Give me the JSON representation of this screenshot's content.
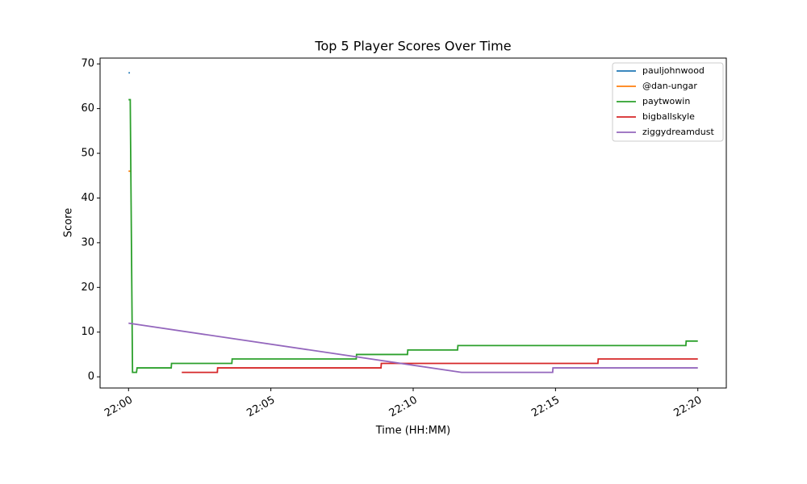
{
  "chart_data": {
    "type": "line",
    "title": "Top 5 Player Scores Over Time",
    "xlabel": "Time (HH:MM)",
    "ylabel": "Score",
    "xlim": [
      1319,
      1341
    ],
    "ylim": [
      -2.5,
      71.3
    ],
    "xticks": [
      {
        "value": 1320,
        "label": "22:00"
      },
      {
        "value": 1325,
        "label": "22:05"
      },
      {
        "value": 1330,
        "label": "22:10"
      },
      {
        "value": 1335,
        "label": "22:15"
      },
      {
        "value": 1340,
        "label": "22:20"
      }
    ],
    "yticks": [
      0,
      10,
      20,
      30,
      40,
      50,
      60,
      70
    ],
    "legend": "upper right",
    "series": [
      {
        "name": "pauljohnwood",
        "color": "#1f77b4",
        "x": [
          1320,
          1320.05
        ],
        "values": [
          68,
          68
        ]
      },
      {
        "name": "@dan-ungar",
        "color": "#ff7f0e",
        "x": [
          1320,
          1320.08
        ],
        "values": [
          46,
          46
        ]
      },
      {
        "name": "paytwowin",
        "color": "#2ca02c",
        "x": [
          1320,
          1320.06,
          1320.14,
          1320.28,
          1320.3,
          1321.5,
          1321.51,
          1323.63,
          1323.64,
          1328.0,
          1328.01,
          1329.8,
          1329.81,
          1331.56,
          1331.57,
          1339.58,
          1339.59,
          1340
        ],
        "values": [
          62,
          62,
          1,
          1,
          2,
          2,
          3,
          3,
          4,
          4,
          5,
          5,
          6,
          6,
          7,
          7,
          8,
          8
        ]
      },
      {
        "name": "bigballskyle",
        "color": "#d62728",
        "x": [
          1321.87,
          1323.12,
          1323.13,
          1328.87,
          1328.88,
          1336.49,
          1336.5,
          1340
        ],
        "values": [
          1,
          1,
          2,
          2,
          3,
          3,
          4,
          4
        ]
      },
      {
        "name": "ziggydreamdust",
        "color": "#9467bd",
        "x": [
          1320,
          1331.7,
          1334.9,
          1334.91,
          1340
        ],
        "values": [
          12,
          1,
          1,
          2,
          2
        ]
      }
    ]
  }
}
